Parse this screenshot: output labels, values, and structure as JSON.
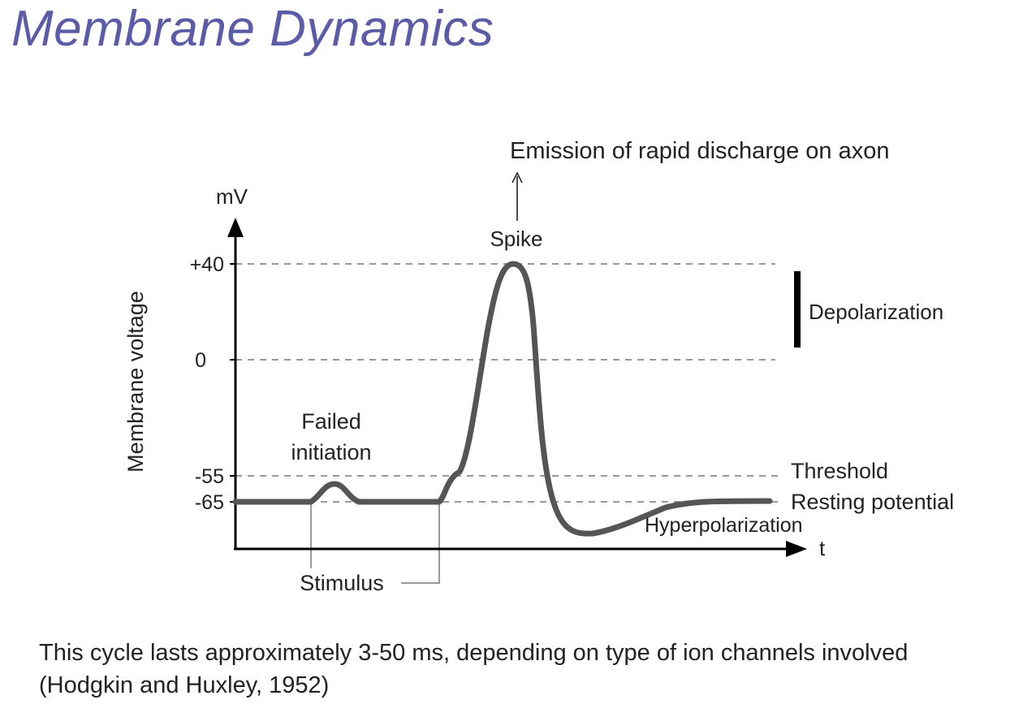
{
  "title": "Membrane Dynamics",
  "diagram": {
    "y_axis_unit": "mV",
    "y_axis_label": "Membrane voltage",
    "x_axis_label": "t",
    "ticks": [
      {
        "label": "+40",
        "value": 40
      },
      {
        "label": "0",
        "value": 0
      },
      {
        "label": "-55",
        "value": -55
      },
      {
        "label": "-65",
        "value": -65
      }
    ],
    "annotations": {
      "emission": "Emission of rapid discharge on axon",
      "spike": "Spike",
      "depolarization": "Depolarization",
      "failed_line1": "Failed",
      "failed_line2": "initiation",
      "threshold": "Threshold",
      "resting": "Resting potential",
      "hyperpolarization": "Hyperpolarization",
      "stimulus": "Stimulus"
    },
    "colors": {
      "curve": "#555555",
      "axis": "#000000",
      "dashed": "#999999",
      "title": "#5b5ba8"
    }
  },
  "caption": "This cycle lasts approximately 3-50 ms, depending on type of ion channels involved (Hodgkin and Huxley, 1952)"
}
